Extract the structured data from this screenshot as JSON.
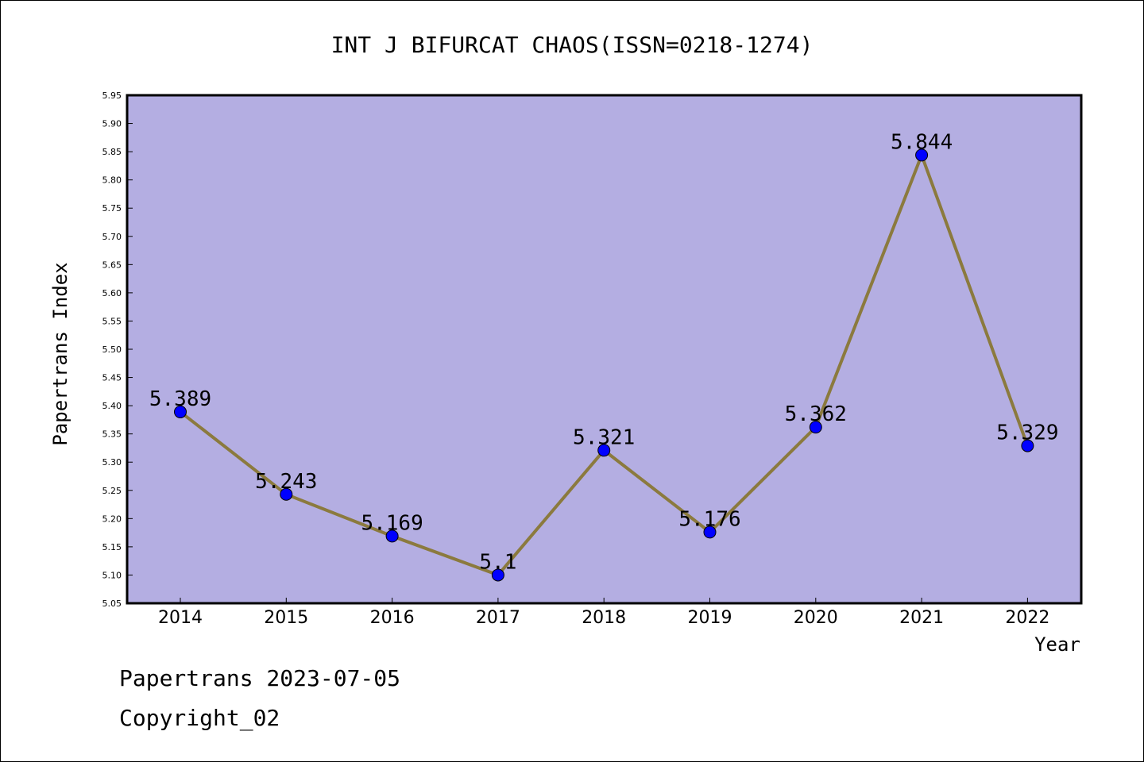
{
  "chart_data": {
    "type": "line",
    "title": "INT J BIFURCAT CHAOS(ISSN=0218-1274)",
    "xlabel": "Year",
    "ylabel": "Papertrans Index",
    "categories": [
      "2014",
      "2015",
      "2016",
      "2017",
      "2018",
      "2019",
      "2020",
      "2021",
      "2022"
    ],
    "series": [
      {
        "values": [
          5.389,
          5.243,
          5.169,
          5.1,
          5.321,
          5.176,
          5.362,
          5.844,
          5.329
        ],
        "data_labels": [
          "5.389",
          "5.243",
          "5.169",
          "5.1",
          "5.321",
          "5.176",
          "5.362",
          "5.844",
          "5.329"
        ]
      }
    ],
    "ylim": [
      5.05,
      5.95
    ],
    "yticks": [
      "5.05",
      "5.10",
      "5.15",
      "5.20",
      "5.25",
      "5.30",
      "5.35",
      "5.40",
      "5.45",
      "5.50",
      "5.55",
      "5.60",
      "5.65",
      "5.70",
      "5.75",
      "5.80",
      "5.85",
      "5.90",
      "5.95"
    ],
    "grid": false,
    "legend": "none",
    "colors": {
      "plot_background": "#b4aee2",
      "line": "#8b7a3e",
      "marker": "#0000ff"
    }
  },
  "footer": {
    "line1": "Papertrans 2023-07-05",
    "line2": "Copyright_02"
  }
}
